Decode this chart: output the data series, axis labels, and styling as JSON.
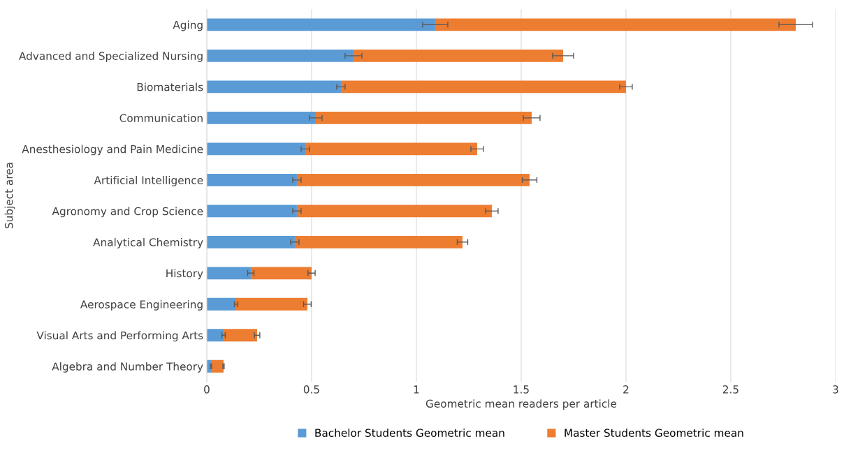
{
  "chart_data": {
    "type": "bar",
    "orientation": "horizontal",
    "stacked": true,
    "xlabel": "Geometric mean readers per article",
    "ylabel": "Subject area",
    "categories": [
      "Aging",
      "Advanced and Specialized Nursing",
      "Biomaterials",
      "Communication",
      "Anesthesiology and Pain Medicine",
      "Artificial Intelligence",
      "Agronomy and Crop Science",
      "Analytical Chemistry",
      "History",
      "Aerospace Engineering",
      "Visual Arts and Performing Arts",
      "Algebra and Number Theory"
    ],
    "series": [
      {
        "name": "Bachelor Students Geometric mean",
        "color": "#5b9bd5",
        "values": [
          1.09,
          0.7,
          0.64,
          0.52,
          0.47,
          0.43,
          0.43,
          0.42,
          0.21,
          0.14,
          0.08,
          0.02
        ],
        "errors": [
          0.06,
          0.04,
          0.02,
          0.03,
          0.02,
          0.02,
          0.02,
          0.02,
          0.015,
          0.008,
          0.008,
          0.003
        ]
      },
      {
        "name": "Master Students Geometric mean",
        "color": "#ed7d31",
        "values": [
          1.72,
          1.0,
          1.36,
          1.03,
          0.82,
          1.11,
          0.93,
          0.8,
          0.29,
          0.34,
          0.16,
          0.06
        ],
        "errors": [
          0.08,
          0.05,
          0.03,
          0.04,
          0.03,
          0.035,
          0.03,
          0.025,
          0.017,
          0.018,
          0.013,
          0.003
        ]
      }
    ],
    "xlim": [
      0,
      3
    ],
    "xticks": [
      0,
      0.5,
      1,
      1.5,
      2,
      2.5,
      3
    ],
    "grid": "x",
    "legend": "bottom"
  }
}
